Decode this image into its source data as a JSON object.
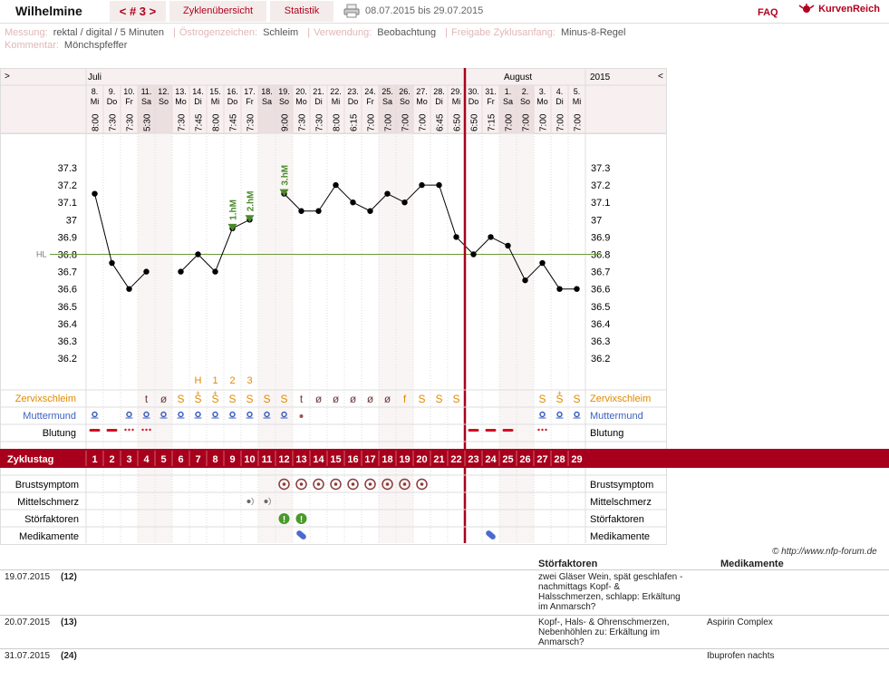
{
  "header": {
    "title": "Wilhelmine",
    "cycle_nav": "< # 3 >",
    "tab_overview": "Zyklenübersicht",
    "tab_stats": "Statistik",
    "date_range": "08.07.2015 bis 29.07.2015",
    "faq": "FAQ",
    "logo": "KurvenReich"
  },
  "meta": {
    "measurement_label": "Messung:",
    "measurement_value": "rektal / digital / 5 Minuten",
    "estrogen_label": "Östrogenzeichen:",
    "estrogen_value": "Schleim",
    "usage_label": "Verwendung:",
    "usage_value": "Beobachtung",
    "release_label": "Freigabe Zyklusanfang:",
    "release_value": "Minus-8-Regel",
    "comment_label": "Kommentar:",
    "comment_value": "Mönchspfeffer"
  },
  "chart_data": {
    "type": "line",
    "month_labels": [
      "Juli",
      "August"
    ],
    "year": "2015",
    "nav_left": ">",
    "nav_right": "<",
    "dates": [
      "8.",
      "9.",
      "10.",
      "11.",
      "12.",
      "13.",
      "14.",
      "15.",
      "16.",
      "17.",
      "18.",
      "19.",
      "20.",
      "21.",
      "22.",
      "23.",
      "24.",
      "25.",
      "26.",
      "27.",
      "28.",
      "29.",
      "30.",
      "31.",
      "1.",
      "2.",
      "3.",
      "4.",
      "5."
    ],
    "weekdays": [
      "Mi",
      "Do",
      "Fr",
      "Sa",
      "So",
      "Mo",
      "Di",
      "Mi",
      "Do",
      "Fr",
      "Sa",
      "So",
      "Mo",
      "Di",
      "Mi",
      "Do",
      "Fr",
      "Sa",
      "So",
      "Mo",
      "Di",
      "Mi",
      "Do",
      "Fr",
      "Sa",
      "So",
      "Mo",
      "Di",
      "Mi"
    ],
    "times": [
      "8:00",
      "7:30",
      "7:30",
      "5:30",
      "",
      "7:30",
      "7:45",
      "8:00",
      "7:45",
      "7:30",
      "",
      "9:00",
      "7:30",
      "7:30",
      "8:00",
      "6:15",
      "7:00",
      "7:00",
      "7:00",
      "7:00",
      "6:45",
      "6:50",
      "6:50",
      "7:15",
      "7:00",
      "7:00",
      "7:00",
      "7:00",
      "7:00"
    ],
    "temperatures": [
      37.15,
      36.75,
      36.6,
      36.7,
      null,
      36.7,
      36.8,
      36.7,
      36.95,
      37.0,
      null,
      37.15,
      37.05,
      37.05,
      37.2,
      37.1,
      37.05,
      37.15,
      37.1,
      37.2,
      37.2,
      36.9,
      36.8,
      36.9,
      36.85,
      36.65,
      36.75,
      36.6,
      36.6
    ],
    "y_ticks": [
      "37.3",
      "37.2",
      "37.1",
      "37",
      "36.9",
      "36.8",
      "36.7",
      "36.6",
      "36.5",
      "36.4",
      "36.3",
      "36.2"
    ],
    "ylim": [
      36.2,
      37.3
    ],
    "hl_label": "HL",
    "hl_value": 36.8,
    "markers": [
      {
        "day": 9,
        "label": "1.hM"
      },
      {
        "day": 10,
        "label": "2.hM"
      },
      {
        "day": 12,
        "label": "3.hM"
      }
    ],
    "peak_labels": [
      "H",
      "1",
      "2",
      "3"
    ],
    "cycle_days": [
      "1",
      "2",
      "3",
      "4",
      "5",
      "6",
      "7",
      "8",
      "9",
      "10",
      "11",
      "12",
      "13",
      "14",
      "15",
      "16",
      "17",
      "18",
      "19",
      "20",
      "21",
      "22",
      "23",
      "24",
      "25",
      "26",
      "27",
      "28",
      "29"
    ],
    "red_line_after_day": 22,
    "mucus": [
      "",
      "",
      "",
      "t",
      "ø",
      "S",
      "S",
      "S",
      "S",
      "S",
      "S",
      "S",
      "t",
      "ø",
      "ø",
      "ø",
      "ø",
      "ø",
      "f",
      "S",
      "S",
      "S",
      "",
      "",
      "",
      "",
      "S",
      "S",
      "S"
    ],
    "mucus_plus": [
      6,
      7,
      27
    ],
    "rows": {
      "mucus": "Zervixschleim",
      "cervix": "Muttermund",
      "bleeding": "Blutung",
      "cycle_day": "Zyklustag",
      "breast": "Brustsymptom",
      "midpain": "Mittelschmerz",
      "disturb": "Störfaktoren",
      "meds": "Medikamente"
    },
    "colors": {
      "accent": "#a8001c",
      "line": "#000000",
      "hl": "#6b9a3a",
      "mucus": "#e08a00",
      "cervix": "#3d5fc0"
    }
  },
  "copyright": "© http://www.nfp-forum.de",
  "table": {
    "col_disturb": "Störfaktoren",
    "col_meds": "Medikamente",
    "rows": [
      {
        "date": "19.07.2015",
        "day": "(12)",
        "disturb": "zwei Gläser Wein, spät geschlafen - nachmittags Kopf- & Halsschmerzen, schlapp: Erkältung im Anmarsch?",
        "med": ""
      },
      {
        "date": "20.07.2015",
        "day": "(13)",
        "disturb": "Kopf-, Hals- & Ohrenschmerzen, Nebenhöhlen zu: Erkältung im Anmarsch?",
        "med": "Aspirin Complex"
      },
      {
        "date": "31.07.2015",
        "day": "(24)",
        "disturb": "",
        "med": "Ibuprofen nachts"
      }
    ]
  }
}
